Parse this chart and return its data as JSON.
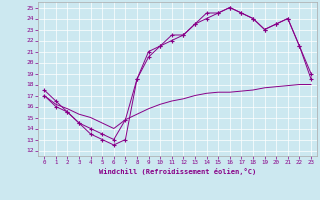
{
  "xlabel": "Windchill (Refroidissement éolien,°C)",
  "bg_color": "#cce8f0",
  "line_color": "#880088",
  "xlim": [
    -0.5,
    23.5
  ],
  "ylim": [
    11.5,
    25.5
  ],
  "xticks": [
    0,
    1,
    2,
    3,
    4,
    5,
    6,
    7,
    8,
    9,
    10,
    11,
    12,
    13,
    14,
    15,
    16,
    17,
    18,
    19,
    20,
    21,
    22,
    23
  ],
  "yticks": [
    12,
    13,
    14,
    15,
    16,
    17,
    18,
    19,
    20,
    21,
    22,
    23,
    24,
    25
  ],
  "curve1_x": [
    0,
    1,
    2,
    3,
    4,
    5,
    6,
    7,
    8,
    9,
    10,
    11,
    12,
    13,
    14,
    15,
    16,
    17,
    18,
    19,
    20,
    21,
    22,
    23
  ],
  "curve1_y": [
    17.5,
    16.5,
    15.5,
    14.5,
    13.5,
    13.0,
    12.5,
    13.0,
    18.5,
    21.0,
    21.5,
    22.5,
    22.5,
    23.5,
    24.5,
    24.5,
    25.0,
    24.5,
    24.0,
    23.0,
    23.5,
    24.0,
    21.5,
    19.0
  ],
  "curve2_x": [
    0,
    1,
    2,
    3,
    4,
    5,
    6,
    7,
    8,
    9,
    10,
    11,
    12,
    13,
    14,
    15,
    16,
    17,
    18,
    19,
    20,
    21,
    22,
    23
  ],
  "curve2_y": [
    17.0,
    16.2,
    15.8,
    15.3,
    15.0,
    14.5,
    14.0,
    14.8,
    15.3,
    15.8,
    16.2,
    16.5,
    16.7,
    17.0,
    17.2,
    17.3,
    17.3,
    17.4,
    17.5,
    17.7,
    17.8,
    17.9,
    18.0,
    18.0
  ],
  "curve3_x": [
    0,
    1,
    2,
    3,
    4,
    5,
    6,
    7,
    8,
    9,
    10,
    11,
    12,
    13,
    14,
    15,
    16,
    17,
    18,
    19,
    20,
    21,
    22,
    23
  ],
  "curve3_y": [
    17.0,
    16.0,
    15.5,
    14.5,
    14.0,
    13.5,
    13.0,
    14.8,
    18.5,
    20.5,
    21.5,
    22.0,
    22.5,
    23.5,
    24.0,
    24.5,
    25.0,
    24.5,
    24.0,
    23.0,
    23.5,
    24.0,
    21.5,
    18.5
  ]
}
